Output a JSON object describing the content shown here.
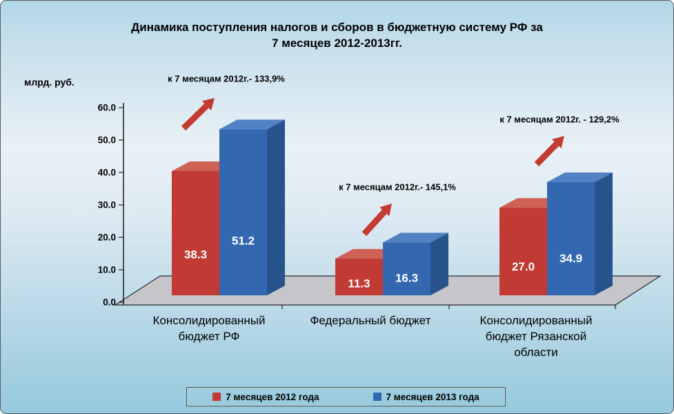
{
  "chart_data": {
    "type": "bar",
    "effect": "3d-clustered-column",
    "title": "Динамика поступления налогов и сборов в бюджетную систему РФ за 7 месяцев 2012-2013гг.",
    "title_lines": [
      "Динамика поступления налогов и сборов в бюджетную систему РФ за",
      "7 месяцев 2012-2013гг."
    ],
    "ylabel": "млрд. руб.",
    "ylim": [
      0,
      60
    ],
    "y_ticks": [
      "0.0",
      "10.0",
      "20.0",
      "30.0",
      "40.0",
      "50.0",
      "60.0"
    ],
    "grid": false,
    "legend_position": "bottom",
    "categories": [
      "Консолидированный\nбюджет РФ",
      "Федеральный бюджет",
      "Консолидированный\nбюджет Рязанской\nобласти"
    ],
    "series": [
      {
        "name": "7 месяцев 2012 года",
        "values": [
          38.3,
          11.3,
          27.0
        ],
        "labels": [
          "38.3",
          "11.3",
          "27.0"
        ]
      },
      {
        "name": "7 месяцев 2013 года",
        "values": [
          51.2,
          16.3,
          34.9
        ],
        "labels": [
          "51.2",
          "16.3",
          "34.9"
        ]
      }
    ],
    "annotations": [
      "к 7 месяцам 2012г.- 133,9%",
      "к  7 месяцам 2012г.- 145,1%",
      "к  7 месяцам 2012г. - 129,2%"
    ]
  },
  "colors": {
    "bar_2012_front": "#c13a34",
    "bar_2012_top": "#cf6157",
    "bar_2012_side": "#8e2b26",
    "bar_2013_front": "#3368b1",
    "bar_2013_top": "#5183c4",
    "bar_2013_side": "#27538c",
    "arrow": "#c23b32",
    "floor": "#c6c6ca",
    "axis": "#000000",
    "value_label": "#ffffff",
    "text": "#000000"
  }
}
